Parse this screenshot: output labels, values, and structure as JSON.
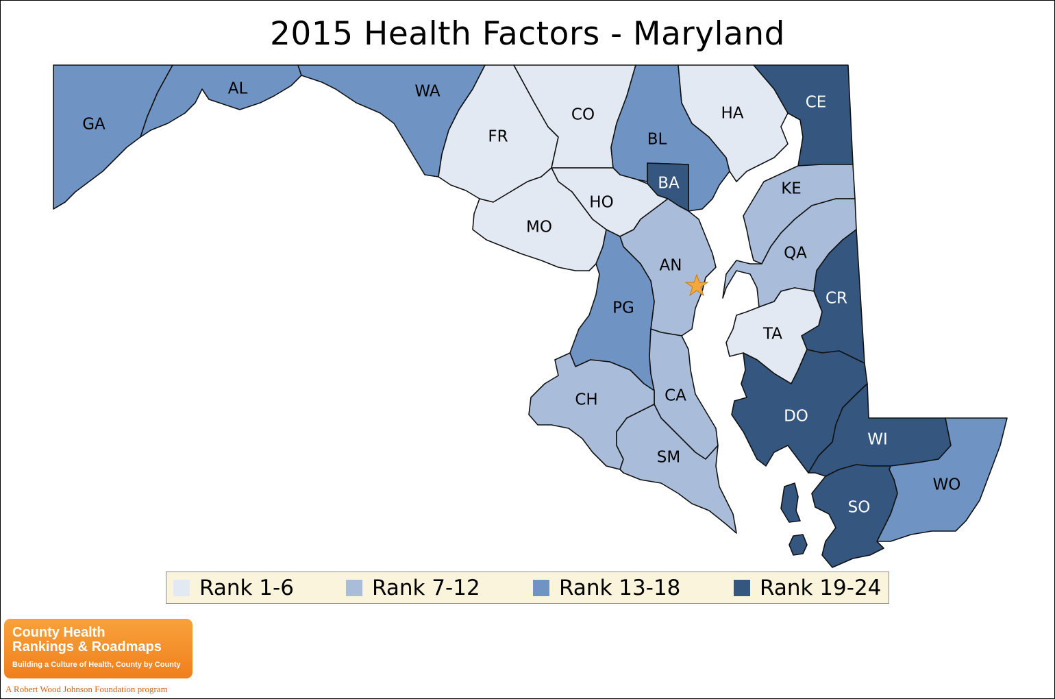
{
  "title": "2015 Health Factors - Maryland",
  "colors": {
    "rank_1_6": "#e3e9f3",
    "rank_7_12": "#a9bcd9",
    "rank_13_18": "#6f93c2",
    "rank_19_24": "#34567f",
    "legend_bg": "#fbf4dc",
    "capital_star": "#f4a83a",
    "logo_orange": "#f07f1c"
  },
  "counties": [
    {
      "abbr": "GA",
      "rank_group": "Rank 13-18"
    },
    {
      "abbr": "AL",
      "rank_group": "Rank 13-18"
    },
    {
      "abbr": "WA",
      "rank_group": "Rank 13-18"
    },
    {
      "abbr": "FR",
      "rank_group": "Rank 1-6"
    },
    {
      "abbr": "CO",
      "rank_group": "Rank 1-6"
    },
    {
      "abbr": "BL",
      "rank_group": "Rank 13-18"
    },
    {
      "abbr": "HA",
      "rank_group": "Rank 1-6"
    },
    {
      "abbr": "CE",
      "rank_group": "Rank 19-24"
    },
    {
      "abbr": "BA",
      "rank_group": "Rank 19-24"
    },
    {
      "abbr": "HO",
      "rank_group": "Rank 1-6"
    },
    {
      "abbr": "MO",
      "rank_group": "Rank 1-6"
    },
    {
      "abbr": "KE",
      "rank_group": "Rank 7-12"
    },
    {
      "abbr": "QA",
      "rank_group": "Rank 7-12"
    },
    {
      "abbr": "AN",
      "rank_group": "Rank 7-12"
    },
    {
      "abbr": "CR",
      "rank_group": "Rank 19-24"
    },
    {
      "abbr": "PG",
      "rank_group": "Rank 13-18"
    },
    {
      "abbr": "TA",
      "rank_group": "Rank 1-6"
    },
    {
      "abbr": "CA",
      "rank_group": "Rank 7-12"
    },
    {
      "abbr": "CH",
      "rank_group": "Rank 7-12"
    },
    {
      "abbr": "DO",
      "rank_group": "Rank 19-24"
    },
    {
      "abbr": "WI",
      "rank_group": "Rank 19-24"
    },
    {
      "abbr": "SM",
      "rank_group": "Rank 7-12"
    },
    {
      "abbr": "WO",
      "rank_group": "Rank 13-18"
    },
    {
      "abbr": "SO",
      "rank_group": "Rank 19-24"
    }
  ],
  "legend": [
    "Rank 1-6",
    "Rank 7-12",
    "Rank 13-18",
    "Rank 19-24"
  ],
  "logo": {
    "line1": "County Health",
    "line2": "Rankings & Roadmaps",
    "tagline": "Building a Culture of Health, County by County"
  },
  "footer": "A Robert Wood Johnson Foundation program"
}
